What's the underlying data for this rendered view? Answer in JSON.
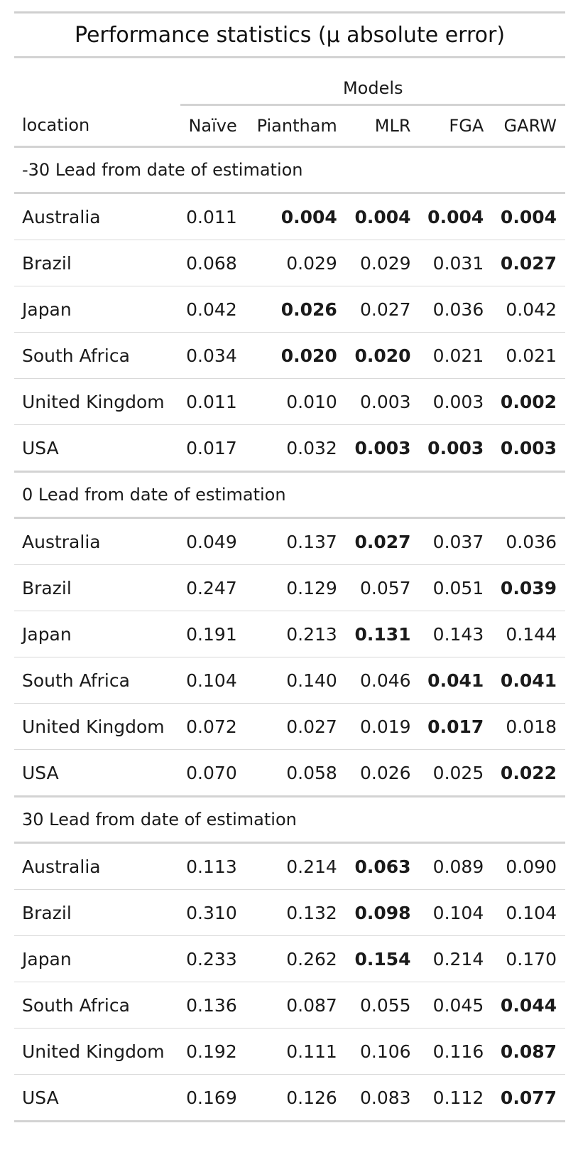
{
  "title": "Performance statistics (μ absolute error)",
  "spanner": "Models",
  "columns": [
    "location",
    "Naïve",
    "Piantham",
    "MLR",
    "FGA",
    "GARW"
  ],
  "groups": [
    {
      "label": "-30 Lead from date of estimation",
      "rows": [
        {
          "location": "Australia",
          "values": [
            "0.011",
            "0.004",
            "0.004",
            "0.004",
            "0.004"
          ],
          "bold": [
            false,
            true,
            true,
            true,
            true
          ]
        },
        {
          "location": "Brazil",
          "values": [
            "0.068",
            "0.029",
            "0.029",
            "0.031",
            "0.027"
          ],
          "bold": [
            false,
            false,
            false,
            false,
            true
          ]
        },
        {
          "location": "Japan",
          "values": [
            "0.042",
            "0.026",
            "0.027",
            "0.036",
            "0.042"
          ],
          "bold": [
            false,
            true,
            false,
            false,
            false
          ]
        },
        {
          "location": "South Africa",
          "values": [
            "0.034",
            "0.020",
            "0.020",
            "0.021",
            "0.021"
          ],
          "bold": [
            false,
            true,
            true,
            false,
            false
          ]
        },
        {
          "location": "United Kingdom",
          "values": [
            "0.011",
            "0.010",
            "0.003",
            "0.003",
            "0.002"
          ],
          "bold": [
            false,
            false,
            false,
            false,
            true
          ]
        },
        {
          "location": "USA",
          "values": [
            "0.017",
            "0.032",
            "0.003",
            "0.003",
            "0.003"
          ],
          "bold": [
            false,
            false,
            true,
            true,
            true
          ]
        }
      ]
    },
    {
      "label": "0 Lead from date of estimation",
      "rows": [
        {
          "location": "Australia",
          "values": [
            "0.049",
            "0.137",
            "0.027",
            "0.037",
            "0.036"
          ],
          "bold": [
            false,
            false,
            true,
            false,
            false
          ]
        },
        {
          "location": "Brazil",
          "values": [
            "0.247",
            "0.129",
            "0.057",
            "0.051",
            "0.039"
          ],
          "bold": [
            false,
            false,
            false,
            false,
            true
          ]
        },
        {
          "location": "Japan",
          "values": [
            "0.191",
            "0.213",
            "0.131",
            "0.143",
            "0.144"
          ],
          "bold": [
            false,
            false,
            true,
            false,
            false
          ]
        },
        {
          "location": "South Africa",
          "values": [
            "0.104",
            "0.140",
            "0.046",
            "0.041",
            "0.041"
          ],
          "bold": [
            false,
            false,
            false,
            true,
            true
          ]
        },
        {
          "location": "United Kingdom",
          "values": [
            "0.072",
            "0.027",
            "0.019",
            "0.017",
            "0.018"
          ],
          "bold": [
            false,
            false,
            false,
            true,
            false
          ]
        },
        {
          "location": "USA",
          "values": [
            "0.070",
            "0.058",
            "0.026",
            "0.025",
            "0.022"
          ],
          "bold": [
            false,
            false,
            false,
            false,
            true
          ]
        }
      ]
    },
    {
      "label": "30 Lead from date of estimation",
      "rows": [
        {
          "location": "Australia",
          "values": [
            "0.113",
            "0.214",
            "0.063",
            "0.089",
            "0.090"
          ],
          "bold": [
            false,
            false,
            true,
            false,
            false
          ]
        },
        {
          "location": "Brazil",
          "values": [
            "0.310",
            "0.132",
            "0.098",
            "0.104",
            "0.104"
          ],
          "bold": [
            false,
            false,
            true,
            false,
            false
          ]
        },
        {
          "location": "Japan",
          "values": [
            "0.233",
            "0.262",
            "0.154",
            "0.214",
            "0.170"
          ],
          "bold": [
            false,
            false,
            true,
            false,
            false
          ]
        },
        {
          "location": "South Africa",
          "values": [
            "0.136",
            "0.087",
            "0.055",
            "0.045",
            "0.044"
          ],
          "bold": [
            false,
            false,
            false,
            false,
            true
          ]
        },
        {
          "location": "United Kingdom",
          "values": [
            "0.192",
            "0.111",
            "0.106",
            "0.116",
            "0.087"
          ],
          "bold": [
            false,
            false,
            false,
            false,
            true
          ]
        },
        {
          "location": "USA",
          "values": [
            "0.169",
            "0.126",
            "0.083",
            "0.112",
            "0.077"
          ],
          "bold": [
            false,
            false,
            false,
            false,
            true
          ]
        }
      ]
    }
  ]
}
